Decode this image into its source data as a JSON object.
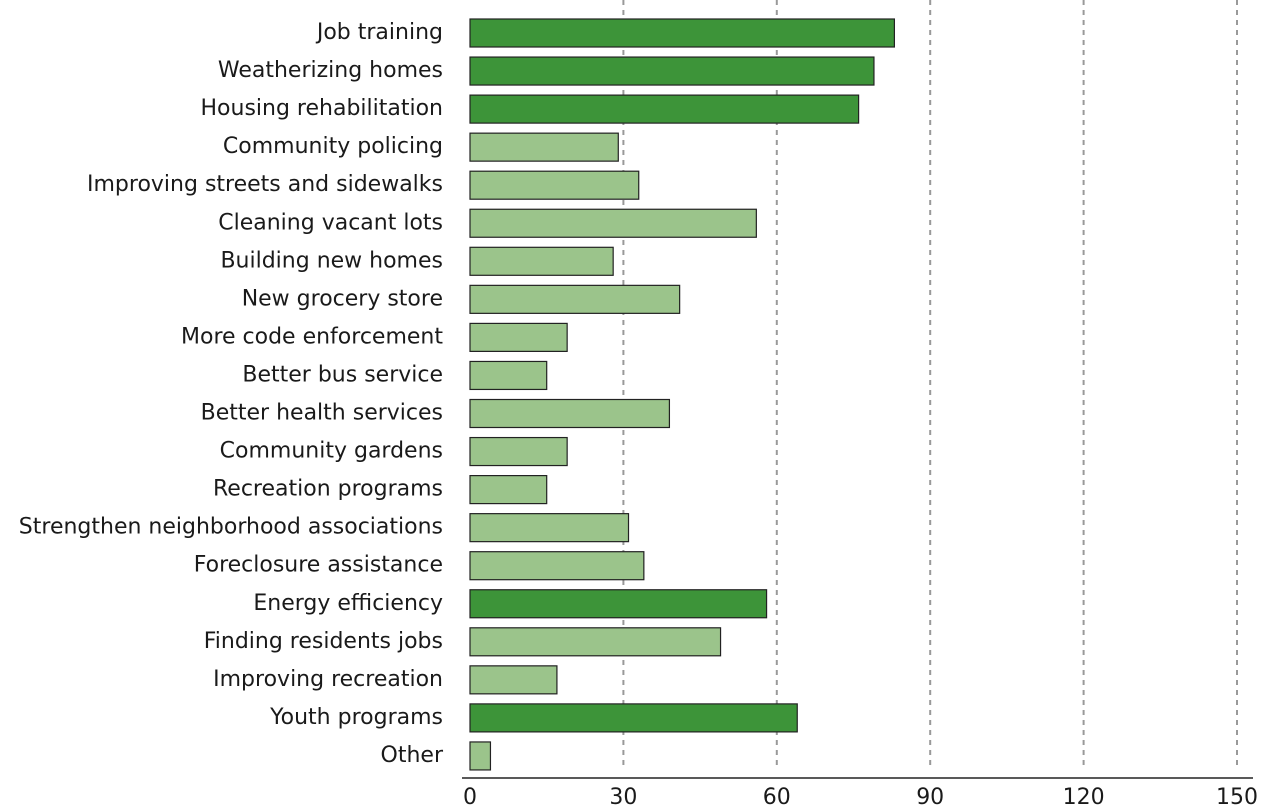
{
  "chart_data": {
    "type": "barh",
    "categories": [
      "Job training",
      "Weatherizing homes",
      "Housing rehabilitation",
      "Community policing",
      "Improving streets and sidewalks",
      "Cleaning vacant lots",
      "Building new homes",
      "New grocery store",
      "More code enforcement",
      "Better bus service",
      "Better health services",
      "Community gardens",
      "Recreation programs",
      "Strengthen neighborhood associations",
      "Foreclosure assistance",
      "Energy efficiency",
      "Finding residents jobs",
      "Improving recreation",
      "Youth programs",
      "Other"
    ],
    "values": [
      83,
      79,
      76,
      29,
      33,
      56,
      28,
      41,
      19,
      15,
      39,
      19,
      15,
      31,
      34,
      58,
      49,
      17,
      64,
      4
    ],
    "colors": [
      "#3d9439",
      "#3d9439",
      "#3d9439",
      "#9bc48b",
      "#9bc48b",
      "#9bc48b",
      "#9bc48b",
      "#9bc48b",
      "#9bc48b",
      "#9bc48b",
      "#9bc48b",
      "#9bc48b",
      "#9bc48b",
      "#9bc48b",
      "#9bc48b",
      "#3d9439",
      "#9bc48b",
      "#9bc48b",
      "#3d9439",
      "#9bc48b"
    ],
    "xlim": [
      0,
      150
    ],
    "xticks": [
      0,
      30,
      60,
      90,
      120,
      150
    ],
    "grid": true
  }
}
